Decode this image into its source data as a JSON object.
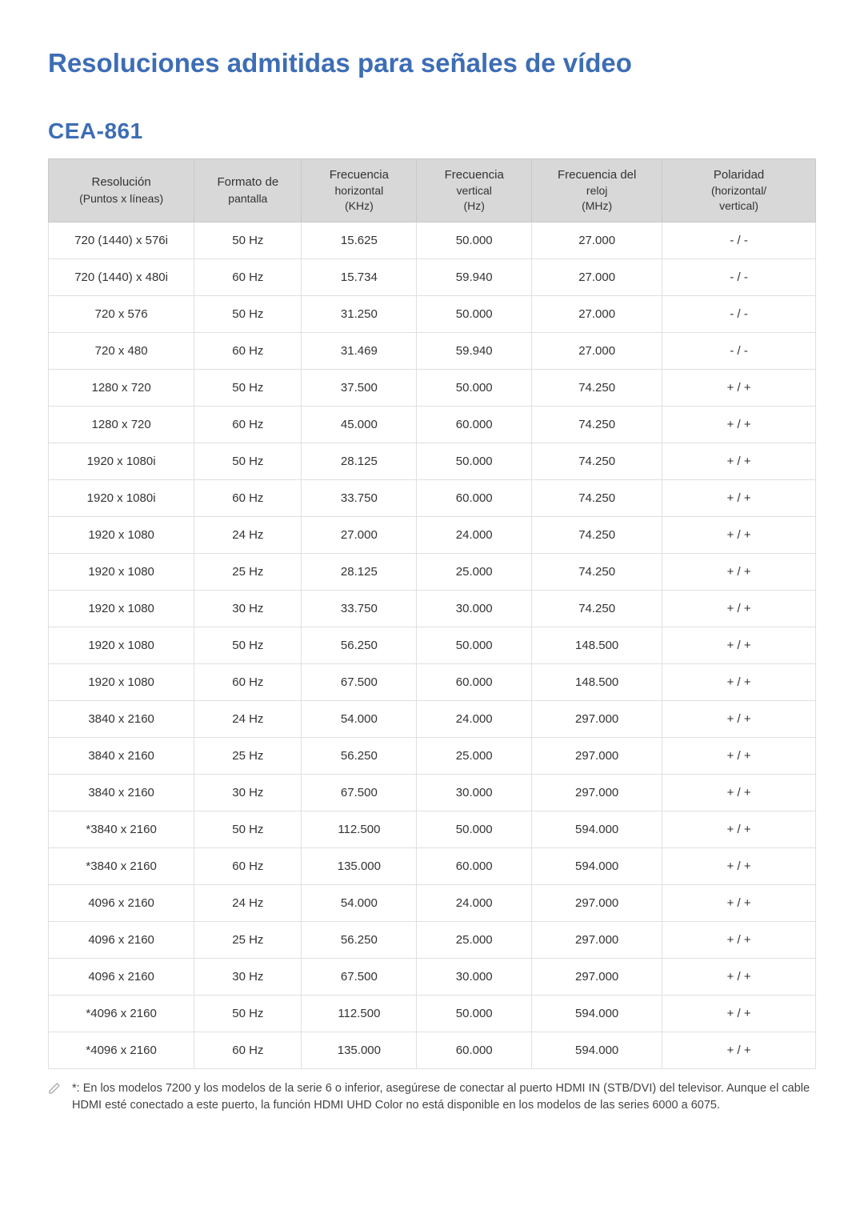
{
  "title": "Resoluciones admitidas para señales de vídeo",
  "section": "CEA-861",
  "columns": [
    {
      "main": "Resolución",
      "sub": "(Puntos x líneas)"
    },
    {
      "main": "Formato de",
      "sub": "pantalla"
    },
    {
      "main": "Frecuencia",
      "mid": "horizontal",
      "sub": "(KHz)"
    },
    {
      "main": "Frecuencia",
      "mid": "vertical",
      "sub": "(Hz)"
    },
    {
      "main": "Frecuencia del",
      "mid": "reloj",
      "sub": "(MHz)"
    },
    {
      "main": "Polaridad",
      "mid": "(horizontal/",
      "sub": "vertical)"
    }
  ],
  "rows": [
    [
      "720 (1440) x 576i",
      "50 Hz",
      "15.625",
      "50.000",
      "27.000",
      "- / -"
    ],
    [
      "720 (1440) x 480i",
      "60 Hz",
      "15.734",
      "59.940",
      "27.000",
      "- / -"
    ],
    [
      "720 x 576",
      "50 Hz",
      "31.250",
      "50.000",
      "27.000",
      "- / -"
    ],
    [
      "720 x 480",
      "60 Hz",
      "31.469",
      "59.940",
      "27.000",
      "- / -"
    ],
    [
      "1280 x 720",
      "50 Hz",
      "37.500",
      "50.000",
      "74.250",
      "+ / +"
    ],
    [
      "1280 x 720",
      "60 Hz",
      "45.000",
      "60.000",
      "74.250",
      "+ / +"
    ],
    [
      "1920 x 1080i",
      "50 Hz",
      "28.125",
      "50.000",
      "74.250",
      "+ / +"
    ],
    [
      "1920 x 1080i",
      "60 Hz",
      "33.750",
      "60.000",
      "74.250",
      "+ / +"
    ],
    [
      "1920 x 1080",
      "24 Hz",
      "27.000",
      "24.000",
      "74.250",
      "+ / +"
    ],
    [
      "1920 x 1080",
      "25 Hz",
      "28.125",
      "25.000",
      "74.250",
      "+ / +"
    ],
    [
      "1920 x 1080",
      "30 Hz",
      "33.750",
      "30.000",
      "74.250",
      "+ / +"
    ],
    [
      "1920 x 1080",
      "50 Hz",
      "56.250",
      "50.000",
      "148.500",
      "+ / +"
    ],
    [
      "1920 x 1080",
      "60 Hz",
      "67.500",
      "60.000",
      "148.500",
      "+ / +"
    ],
    [
      "3840 x 2160",
      "24 Hz",
      "54.000",
      "24.000",
      "297.000",
      "+ / +"
    ],
    [
      "3840 x 2160",
      "25 Hz",
      "56.250",
      "25.000",
      "297.000",
      "+ / +"
    ],
    [
      "3840 x 2160",
      "30 Hz",
      "67.500",
      "30.000",
      "297.000",
      "+ / +"
    ],
    [
      "*3840 x 2160",
      "50 Hz",
      "112.500",
      "50.000",
      "594.000",
      "+ / +"
    ],
    [
      "*3840 x 2160",
      "60 Hz",
      "135.000",
      "60.000",
      "594.000",
      "+ / +"
    ],
    [
      "4096 x 2160",
      "24 Hz",
      "54.000",
      "24.000",
      "297.000",
      "+ / +"
    ],
    [
      "4096 x 2160",
      "25 Hz",
      "56.250",
      "25.000",
      "297.000",
      "+ / +"
    ],
    [
      "4096 x 2160",
      "30 Hz",
      "67.500",
      "30.000",
      "297.000",
      "+ / +"
    ],
    [
      "*4096 x 2160",
      "50 Hz",
      "112.500",
      "50.000",
      "594.000",
      "+ / +"
    ],
    [
      "*4096 x 2160",
      "60 Hz",
      "135.000",
      "60.000",
      "594.000",
      "+ / +"
    ]
  ],
  "footnote": "*: En los modelos 7200 y los modelos de la serie 6 o inferior, asegúrese de conectar al puerto HDMI IN (STB/DVI) del televisor. Aunque el cable HDMI esté conectado a este puerto, la función HDMI UHD Color no está disponible en los modelos de las series 6000 a 6075.",
  "colors": {
    "heading": "#3d6db5",
    "header_bg": "#d8d8d8",
    "border": "#e0e0e0",
    "text": "#333333"
  },
  "column_widths_pct": [
    19,
    14,
    15,
    15,
    17,
    20
  ]
}
